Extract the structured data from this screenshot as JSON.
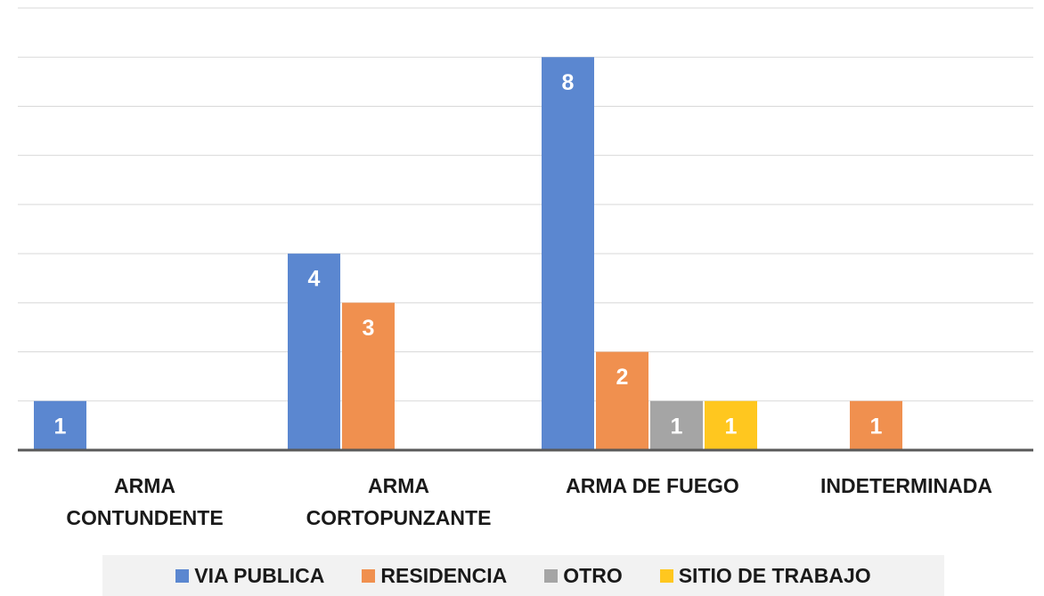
{
  "chart_data": {
    "type": "bar",
    "categories": [
      "ARMA CONTUNDENTE",
      "ARMA CORTOPUNZANTE",
      "ARMA DE FUEGO",
      "INDETERMINADA"
    ],
    "series": [
      {
        "name": "VIA PUBLICA",
        "color": "#5b87d0",
        "values": [
          1,
          4,
          8,
          null
        ]
      },
      {
        "name": "RESIDENCIA",
        "color": "#f0904f",
        "values": [
          null,
          3,
          2,
          1
        ]
      },
      {
        "name": "OTRO",
        "color": "#a5a5a5",
        "values": [
          null,
          null,
          1,
          null
        ]
      },
      {
        "name": "SITIO DE TRABAJO",
        "color": "#ffc71f",
        "values": [
          null,
          null,
          1,
          null
        ]
      }
    ],
    "ylim": [
      0,
      9
    ],
    "yticks": [
      0,
      1,
      2,
      3,
      4,
      5,
      6,
      7,
      8,
      9
    ],
    "grid": true,
    "legend": "bottom"
  }
}
